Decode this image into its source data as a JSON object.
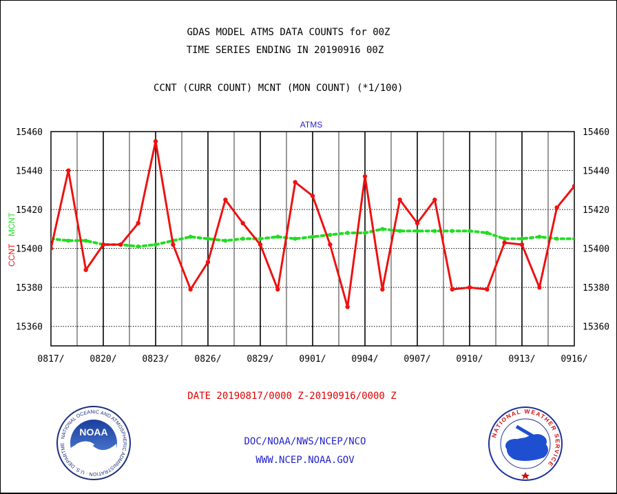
{
  "header": {
    "title_line1": "GDAS MODEL ATMS DATA COUNTS for 00Z",
    "title_line2": "TIME SERIES ENDING IN 20190916 00Z",
    "subtitle": "CCNT (CURR COUNT) MCNT (MON COUNT) (*1/100)"
  },
  "footer": {
    "date_range": "DATE 20190817/0000 Z-20190916/0000 Z",
    "credit_line1": "DOC/NOAA/NWS/NCEP/NCO",
    "credit_line2": "WWW.NCEP.NOAA.GOV"
  },
  "logos": {
    "left": {
      "icon": "noaa-logo",
      "text": "NOAA",
      "ring_text": "NATIONAL OCEANIC AND ATMOSPHERIC ADMINISTRATION · U.S. DEPARTMENT OF COMMERCE"
    },
    "right": {
      "icon": "national-weather-service-logo",
      "ring_text": "NATIONAL WEATHER SERVICE"
    }
  },
  "colors": {
    "ccnt": "#ee1111",
    "mcnt": "#22dd22",
    "ylabel_ccnt": "#ee1111",
    "ylabel_mcnt": "#22dd22",
    "chart_title": "#2222cc",
    "date_range": "#e00000",
    "credits": "#2222cc"
  },
  "chart_data": {
    "type": "line",
    "title": "ATMS",
    "ylabel_parts": [
      "CCNT",
      "MCNT"
    ],
    "xlabel": "",
    "xticks": [
      "0817/",
      "0820/",
      "0823/",
      "0826/",
      "0829/",
      "0901/",
      "0904/",
      "0907/",
      "0910/",
      "0913/",
      "0916/"
    ],
    "yticks": [
      15360,
      15380,
      15400,
      15420,
      15440,
      15460
    ],
    "ylim": [
      15350,
      15460
    ],
    "grid": true,
    "x_unit": "day",
    "xlim": [
      0,
      30
    ],
    "series": [
      {
        "name": "CCNT",
        "style": "solid",
        "x": [
          0,
          1,
          2,
          3,
          4,
          5,
          6,
          7,
          8,
          9,
          10,
          11,
          12,
          13,
          14,
          15,
          16,
          17,
          18,
          19,
          20,
          21,
          22,
          23,
          24,
          25,
          26,
          27,
          28,
          29,
          30
        ],
        "values": [
          15400,
          15440,
          15389,
          15402,
          15402,
          15413,
          15455,
          15402,
          15379,
          15393,
          15425,
          15413,
          15402,
          15379,
          15434,
          15427,
          15402,
          15370,
          15437,
          15379,
          15425,
          15413,
          15425,
          15379,
          15380,
          15379,
          15403,
          15402,
          15380,
          15421,
          15432
        ]
      },
      {
        "name": "MCNT",
        "style": "dotted",
        "x": [
          0,
          1,
          2,
          3,
          4,
          5,
          6,
          7,
          8,
          9,
          10,
          11,
          12,
          13,
          14,
          15,
          16,
          17,
          18,
          19,
          20,
          21,
          22,
          23,
          24,
          25,
          26,
          27,
          28,
          29,
          30
        ],
        "values": [
          15405,
          15404,
          15404,
          15402,
          15402,
          15401,
          15402,
          15404,
          15406,
          15405,
          15404,
          15405,
          15405,
          15406,
          15405,
          15406,
          15407,
          15408,
          15408,
          15410,
          15409,
          15409,
          15409,
          15409,
          15409,
          15408,
          15405,
          15405,
          15406,
          15405,
          15405
        ]
      }
    ]
  }
}
